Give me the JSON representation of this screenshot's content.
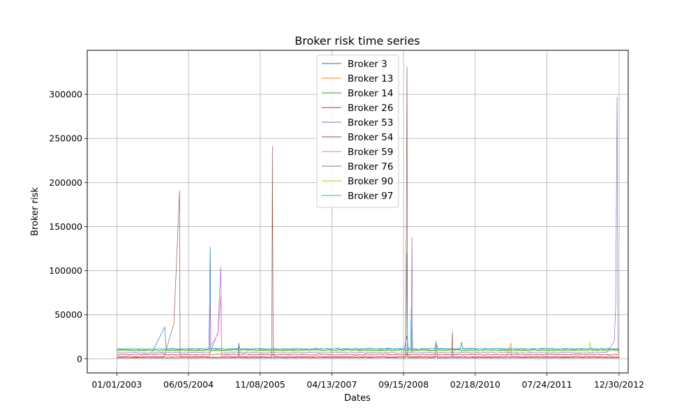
{
  "chart_data": {
    "type": "line",
    "title": "Broker risk time series",
    "xlabel": "Dates",
    "ylabel": "Broker risk",
    "x_range": [
      "2002-05-31",
      "2013-03-06"
    ],
    "ylim": [
      -16000,
      350000
    ],
    "grid": true,
    "legend_position": "top-center",
    "x_ticks": [
      {
        "date": "2003-01-01",
        "label": "01/01/2003"
      },
      {
        "date": "2004-06-05",
        "label": "06/05/2004"
      },
      {
        "date": "2005-11-08",
        "label": "11/08/2005"
      },
      {
        "date": "2007-04-13",
        "label": "04/13/2007"
      },
      {
        "date": "2008-09-15",
        "label": "09/15/2008"
      },
      {
        "date": "2010-02-18",
        "label": "02/18/2010"
      },
      {
        "date": "2011-07-24",
        "label": "07/24/2011"
      },
      {
        "date": "2012-12-30",
        "label": "12/30/2012"
      }
    ],
    "y_ticks": [
      {
        "value": 0,
        "label": "0"
      },
      {
        "value": 50000,
        "label": "50000"
      },
      {
        "value": 100000,
        "label": "100000"
      },
      {
        "value": 150000,
        "label": "150000"
      },
      {
        "value": 200000,
        "label": "200000"
      },
      {
        "value": 250000,
        "label": "250000"
      },
      {
        "value": 300000,
        "label": "300000"
      }
    ],
    "series": [
      {
        "name": "Broker 3",
        "color": "#1f77b4",
        "baseline": 11000,
        "noise": 600,
        "points": [
          [
            "2003-01-01",
            11000
          ],
          [
            "2003-09-20",
            9000
          ],
          [
            "2003-12-15",
            36000
          ],
          [
            "2003-12-25",
            11000
          ],
          [
            "2004-11-01",
            11000
          ],
          [
            "2004-11-10",
            127000
          ],
          [
            "2004-11-14",
            11000
          ],
          [
            "2005-06-01",
            11000
          ],
          [
            "2005-06-05",
            18000
          ],
          [
            "2005-06-12",
            11000
          ],
          [
            "2008-09-20",
            11000
          ],
          [
            "2008-10-10",
            26000
          ],
          [
            "2008-10-20",
            11000
          ],
          [
            "2009-05-01",
            11000
          ],
          [
            "2009-05-10",
            19000
          ],
          [
            "2009-05-20",
            11000
          ],
          [
            "2009-11-01",
            11000
          ],
          [
            "2009-11-10",
            19000
          ],
          [
            "2009-11-20",
            11000
          ],
          [
            "2012-12-30",
            11000
          ]
        ]
      },
      {
        "name": "Broker 13",
        "color": "#ff7f0e",
        "baseline": 2000,
        "noise": 300,
        "points": [
          [
            "2003-01-01",
            2000
          ],
          [
            "2008-10-01",
            2000
          ],
          [
            "2008-10-10",
            6000
          ],
          [
            "2008-10-20",
            2000
          ],
          [
            "2010-10-01",
            2000
          ],
          [
            "2010-11-05",
            18000
          ],
          [
            "2010-11-10",
            2000
          ],
          [
            "2012-12-30",
            2000
          ]
        ]
      },
      {
        "name": "Broker 14",
        "color": "#2ca02c",
        "baseline": 10000,
        "noise": 600,
        "points": [
          [
            "2003-01-01",
            10000
          ],
          [
            "2012-12-30",
            10000
          ]
        ]
      },
      {
        "name": "Broker 26",
        "color": "#d62728",
        "baseline": 5000,
        "noise": 500,
        "points": [
          [
            "2003-01-01",
            5000
          ],
          [
            "2012-12-30",
            5000
          ]
        ]
      },
      {
        "name": "Broker 53",
        "color": "#9467bd",
        "baseline": 7000,
        "noise": 500,
        "points": [
          [
            "2003-01-01",
            7000
          ],
          [
            "2004-11-10",
            7000
          ],
          [
            "2005-01-05",
            30000
          ],
          [
            "2005-01-25",
            104000
          ],
          [
            "2005-02-01",
            7000
          ],
          [
            "2008-11-10",
            7000
          ],
          [
            "2008-11-15",
            138000
          ],
          [
            "2008-11-20",
            7000
          ],
          [
            "2012-10-01",
            7000
          ],
          [
            "2012-11-25",
            20000
          ],
          [
            "2012-12-05",
            60000
          ],
          [
            "2012-12-15",
            297000
          ],
          [
            "2012-12-22",
            7000
          ],
          [
            "2012-12-30",
            7000
          ]
        ]
      },
      {
        "name": "Broker 54",
        "color": "#8c564b",
        "baseline": 2000,
        "noise": 400,
        "points": [
          [
            "2003-01-01",
            2000
          ],
          [
            "2003-12-10",
            2000
          ],
          [
            "2004-02-20",
            40000
          ],
          [
            "2004-04-01",
            191000
          ],
          [
            "2004-04-05",
            2000
          ],
          [
            "2006-02-01",
            2000
          ],
          [
            "2006-02-05",
            241000
          ],
          [
            "2006-02-10",
            25000
          ],
          [
            "2006-02-15",
            2000
          ],
          [
            "2008-10-01",
            2000
          ],
          [
            "2008-10-10",
            331000
          ],
          [
            "2008-10-14",
            2000
          ],
          [
            "2009-09-01",
            2000
          ],
          [
            "2009-09-05",
            31000
          ],
          [
            "2009-09-10",
            2000
          ],
          [
            "2012-12-30",
            2000
          ]
        ]
      },
      {
        "name": "Broker 59",
        "color": "#e377c2",
        "baseline": 3000,
        "noise": 400,
        "points": [
          [
            "2003-01-01",
            3000
          ],
          [
            "2004-11-05",
            3000
          ],
          [
            "2004-11-10",
            61000
          ],
          [
            "2004-11-15",
            15000
          ],
          [
            "2005-01-05",
            28000
          ],
          [
            "2005-01-25",
            70000
          ],
          [
            "2005-02-01",
            3000
          ],
          [
            "2012-12-30",
            3000
          ]
        ]
      },
      {
        "name": "Broker 76",
        "color": "#7f7f7f",
        "baseline": 1000,
        "noise": 300,
        "points": [
          [
            "2003-01-01",
            1000
          ],
          [
            "2005-06-01",
            1000
          ],
          [
            "2005-06-05",
            18000
          ],
          [
            "2005-06-10",
            1000
          ],
          [
            "2008-10-01",
            1000
          ],
          [
            "2008-10-10",
            120000
          ],
          [
            "2008-10-14",
            1000
          ],
          [
            "2009-05-01",
            1000
          ],
          [
            "2009-05-10",
            20000
          ],
          [
            "2009-05-20",
            1000
          ],
          [
            "2012-12-30",
            1000
          ]
        ]
      },
      {
        "name": "Broker 90",
        "color": "#bcbd22",
        "baseline": 9000,
        "noise": 500,
        "points": [
          [
            "2003-01-01",
            9000
          ],
          [
            "2012-05-25",
            9000
          ],
          [
            "2012-06-01",
            19000
          ],
          [
            "2012-06-08",
            9000
          ],
          [
            "2012-12-30",
            9000
          ]
        ]
      },
      {
        "name": "Broker 97",
        "color": "#17becf",
        "baseline": 11500,
        "noise": 500,
        "points": [
          [
            "2003-01-01",
            11500
          ],
          [
            "2008-11-05",
            11500
          ],
          [
            "2008-11-10",
            59000
          ],
          [
            "2008-11-15",
            11500
          ],
          [
            "2012-12-30",
            11500
          ]
        ]
      }
    ]
  }
}
